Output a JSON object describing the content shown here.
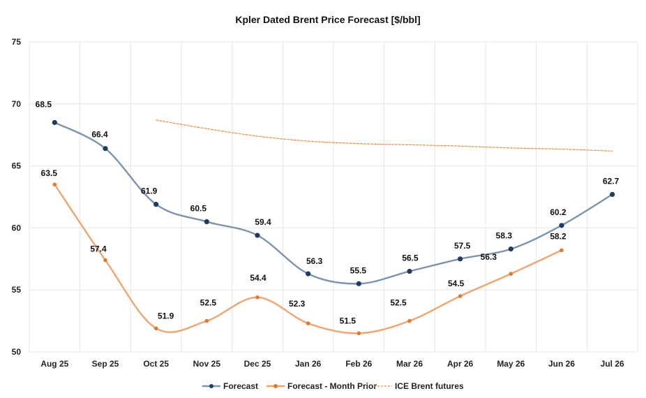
{
  "chart_data": {
    "type": "line",
    "title": "Kpler Dated Brent Price Forecast [$/bbl]",
    "categories": [
      "Aug 25",
      "Sep 25",
      "Oct 25",
      "Nov 25",
      "Dec 25",
      "Jan 26",
      "Feb 26",
      "Mar 26",
      "Apr 26",
      "May 26",
      "Jun 26",
      "Jul 26"
    ],
    "ylim": [
      50,
      75
    ],
    "yticks": [
      50,
      55,
      60,
      65,
      70,
      75
    ],
    "grid": true,
    "legend_position": "bottom",
    "series": [
      {
        "name": "Forecast",
        "color": "#7b93ae",
        "marker_color": "#1f3b63",
        "style": "solid",
        "values": [
          68.5,
          66.4,
          61.9,
          60.5,
          59.4,
          56.3,
          55.5,
          56.5,
          57.5,
          58.3,
          60.2,
          62.7
        ],
        "labels": [
          "68.5",
          "66.4",
          "61.9",
          "60.5",
          "59.4",
          "56.3",
          "55.5",
          "56.5",
          "57.5",
          "58.3",
          "60.2",
          "62.7"
        ]
      },
      {
        "name": "Forecast - Month Prior",
        "color": "#f2a46e",
        "marker_color": "#e07a30",
        "style": "solid",
        "values": [
          63.5,
          57.4,
          51.9,
          52.5,
          54.4,
          52.3,
          51.5,
          52.5,
          54.5,
          56.3,
          58.2,
          null
        ],
        "labels": [
          "63.5",
          "57.4",
          "51.9",
          "52.5",
          "54.4",
          "52.3",
          "51.5",
          "52.5",
          "54.5",
          "56.3",
          "58.2",
          ""
        ]
      },
      {
        "name": "ICE Brent futures",
        "color": "#f28a3c",
        "style": "dashed",
        "values": [
          null,
          null,
          68.7,
          68.0,
          67.4,
          67.0,
          66.8,
          66.7,
          66.6,
          66.45,
          66.35,
          66.2
        ],
        "labels": []
      }
    ]
  }
}
